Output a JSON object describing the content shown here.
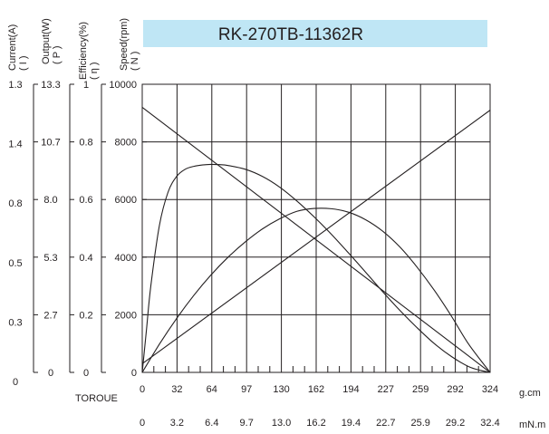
{
  "chart_data": {
    "type": "line",
    "title": "RK-270TB-11362R",
    "colors": {
      "title_band": "#bfe6f5",
      "ink": "#231f20"
    },
    "axes": {
      "current": {
        "label": "Current(A)",
        "symbol": "( I )",
        "ticks": [
          "1.3",
          "1.4",
          "0.8",
          "0.5",
          "0.3",
          "0"
        ]
      },
      "output": {
        "label": "Output(W)",
        "symbol": "( P )",
        "ticks": [
          "13.3",
          "10.7",
          "8.0",
          "5.3",
          "2.7",
          "0"
        ]
      },
      "efficiency": {
        "label": "Efficiency(%)",
        "symbol": "( η )",
        "ticks": [
          "1",
          "0.8",
          "0.6",
          "0.4",
          "0.2",
          "0"
        ]
      },
      "speed": {
        "label": "Speed(rpm)",
        "symbol": "( N )",
        "ticks": [
          "10000",
          "8000",
          "6000",
          "4000",
          "2000",
          "0"
        ],
        "ylim": [
          0,
          10000
        ]
      }
    },
    "x_axis": {
      "label": "TOROUE",
      "unit_gcm": "g.cm",
      "unit_mnm": "mN.m",
      "ticks_gcm": [
        "0",
        "32",
        "64",
        "97",
        "130",
        "162",
        "194",
        "227",
        "259",
        "292",
        "324"
      ],
      "ticks_mnm": [
        "0",
        "3.2",
        "6.4",
        "9.7",
        "13.0",
        "16.2",
        "19.4",
        "22.7",
        "25.9",
        "29.2",
        "32.4"
      ],
      "xlim": [
        0,
        324
      ]
    },
    "grid": true,
    "series": [
      {
        "id": "speed",
        "x": [
          0,
          324
        ],
        "y": [
          9200,
          0
        ]
      },
      {
        "id": "current",
        "x": [
          0,
          324
        ],
        "y": [
          300,
          9100
        ]
      },
      {
        "id": "efficiency",
        "x": [
          0,
          4,
          8,
          16,
          24,
          32,
          40,
          48,
          56,
          64,
          72,
          80,
          96,
          112,
          128,
          144,
          160,
          176,
          192,
          208,
          224,
          240,
          256,
          272,
          288,
          304,
          316,
          324
        ],
        "y": [
          0,
          1500,
          3000,
          5100,
          6250,
          6800,
          7050,
          7150,
          7200,
          7220,
          7210,
          7180,
          7050,
          6800,
          6430,
          5950,
          5400,
          4800,
          4150,
          3480,
          2800,
          2150,
          1550,
          1000,
          550,
          200,
          60,
          0
        ]
      },
      {
        "id": "output",
        "x": [
          0,
          16,
          32,
          48,
          64,
          80,
          96,
          112,
          128,
          144,
          160,
          176,
          192,
          208,
          224,
          240,
          256,
          272,
          288,
          304,
          324
        ],
        "y": [
          0,
          980,
          1870,
          2670,
          3380,
          4000,
          4530,
          4980,
          5330,
          5590,
          5690,
          5680,
          5560,
          5300,
          4900,
          4350,
          3650,
          2850,
          1950,
          980,
          0
        ]
      }
    ]
  }
}
